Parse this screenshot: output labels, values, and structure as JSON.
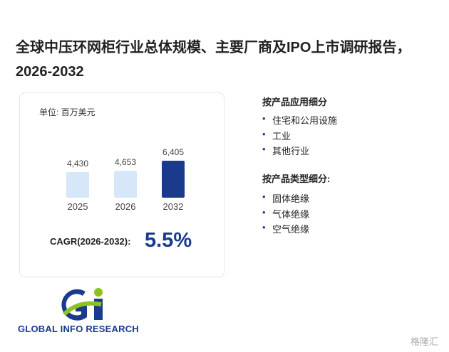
{
  "title": "全球中压环网柜行业总体规模、主要厂商及IPO上市调研报告，2026-2032",
  "chart_data": {
    "type": "bar",
    "unit": "单位: 百万美元",
    "categories": [
      "2025",
      "2026",
      "2032"
    ],
    "values": [
      4430,
      4653,
      6405
    ],
    "value_labels": [
      "4,430",
      "4,653",
      "6,405"
    ],
    "colors": [
      "#d5e7f8",
      "#d5e7f8",
      "#1a3a8c"
    ]
  },
  "cagr": {
    "label": "CAGR(2026-2032):",
    "value": "5.5%"
  },
  "segments": [
    {
      "heading": "按产品应用细分",
      "items": [
        "住宅和公用设施",
        "工业",
        "其他行业"
      ]
    },
    {
      "heading": "按产品类型细分:",
      "items": [
        "固体绝缘",
        "气体绝缘",
        "空气绝缘"
      ]
    }
  ],
  "logo": "GLOBAL INFO RESEARCH",
  "watermark": "格隆汇"
}
